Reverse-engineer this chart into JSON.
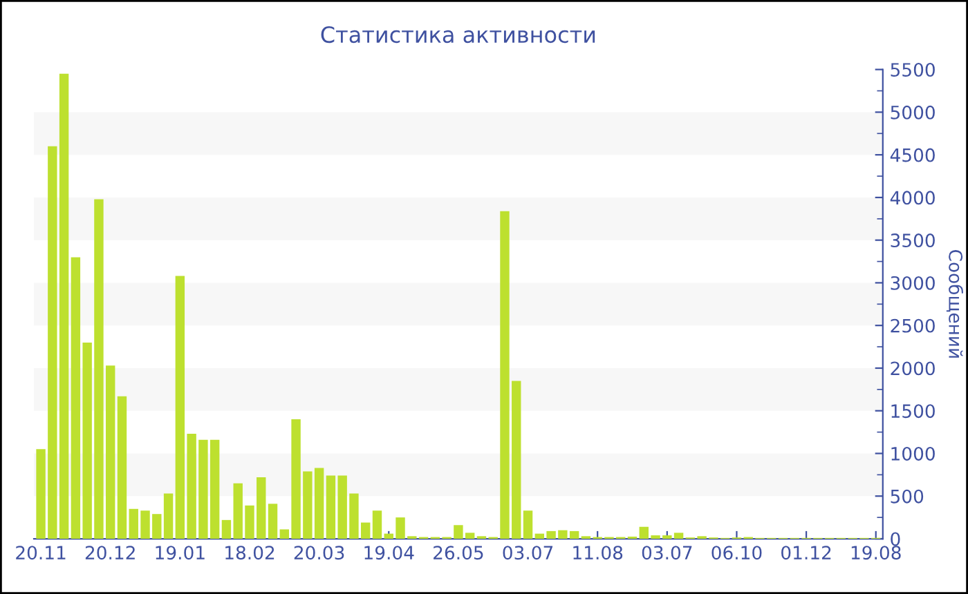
{
  "chart_data": {
    "type": "bar",
    "title": "Статистика активности",
    "ylabel": "Сообщений",
    "categories": [
      "20.11",
      null,
      null,
      null,
      null,
      null,
      "20.12",
      null,
      null,
      null,
      null,
      null,
      "19.01",
      null,
      null,
      null,
      null,
      null,
      "18.02",
      null,
      null,
      null,
      null,
      null,
      "20.03",
      null,
      null,
      null,
      null,
      null,
      "19.04",
      null,
      null,
      null,
      null,
      null,
      "26.05",
      null,
      null,
      null,
      null,
      null,
      "03.07",
      null,
      null,
      null,
      null,
      null,
      "11.08",
      null,
      null,
      null,
      null,
      null,
      "03.07",
      null,
      null,
      null,
      null,
      null,
      "06.10",
      null,
      null,
      null,
      null,
      null,
      "01.12",
      null,
      null,
      null,
      null,
      null,
      "19.08"
    ],
    "values": [
      1050,
      4600,
      5450,
      3300,
      2300,
      3980,
      2030,
      1670,
      350,
      330,
      290,
      530,
      3080,
      1230,
      1160,
      1160,
      220,
      650,
      390,
      720,
      410,
      110,
      1400,
      790,
      830,
      740,
      740,
      530,
      190,
      330,
      60,
      250,
      30,
      20,
      20,
      20,
      160,
      70,
      30,
      20,
      3840,
      1850,
      330,
      60,
      90,
      100,
      90,
      30,
      20,
      20,
      20,
      25,
      140,
      40,
      40,
      70,
      15,
      30,
      15,
      10,
      15,
      20,
      10,
      10,
      10,
      10,
      10,
      10,
      10,
      10,
      10,
      10,
      10
    ],
    "color": "#bde02f",
    "ylim": [
      0,
      5500
    ],
    "yticks": [
      0,
      500,
      1000,
      1500,
      2000,
      2500,
      3000,
      3500,
      4000,
      4500,
      5000,
      5500
    ],
    "bands": [
      {
        "axis": "y",
        "from": 500,
        "to": 1000,
        "color": "#f7f7f7"
      },
      {
        "axis": "y",
        "from": 1500,
        "to": 2000,
        "color": "#f7f7f7"
      },
      {
        "axis": "y",
        "from": 2500,
        "to": 3000,
        "color": "#f7f7f7"
      },
      {
        "axis": "y",
        "from": 3500,
        "to": 4000,
        "color": "#f7f7f7"
      },
      {
        "axis": "y",
        "from": 4500,
        "to": 5000,
        "color": "#f7f7f7"
      }
    ],
    "legend": false
  }
}
